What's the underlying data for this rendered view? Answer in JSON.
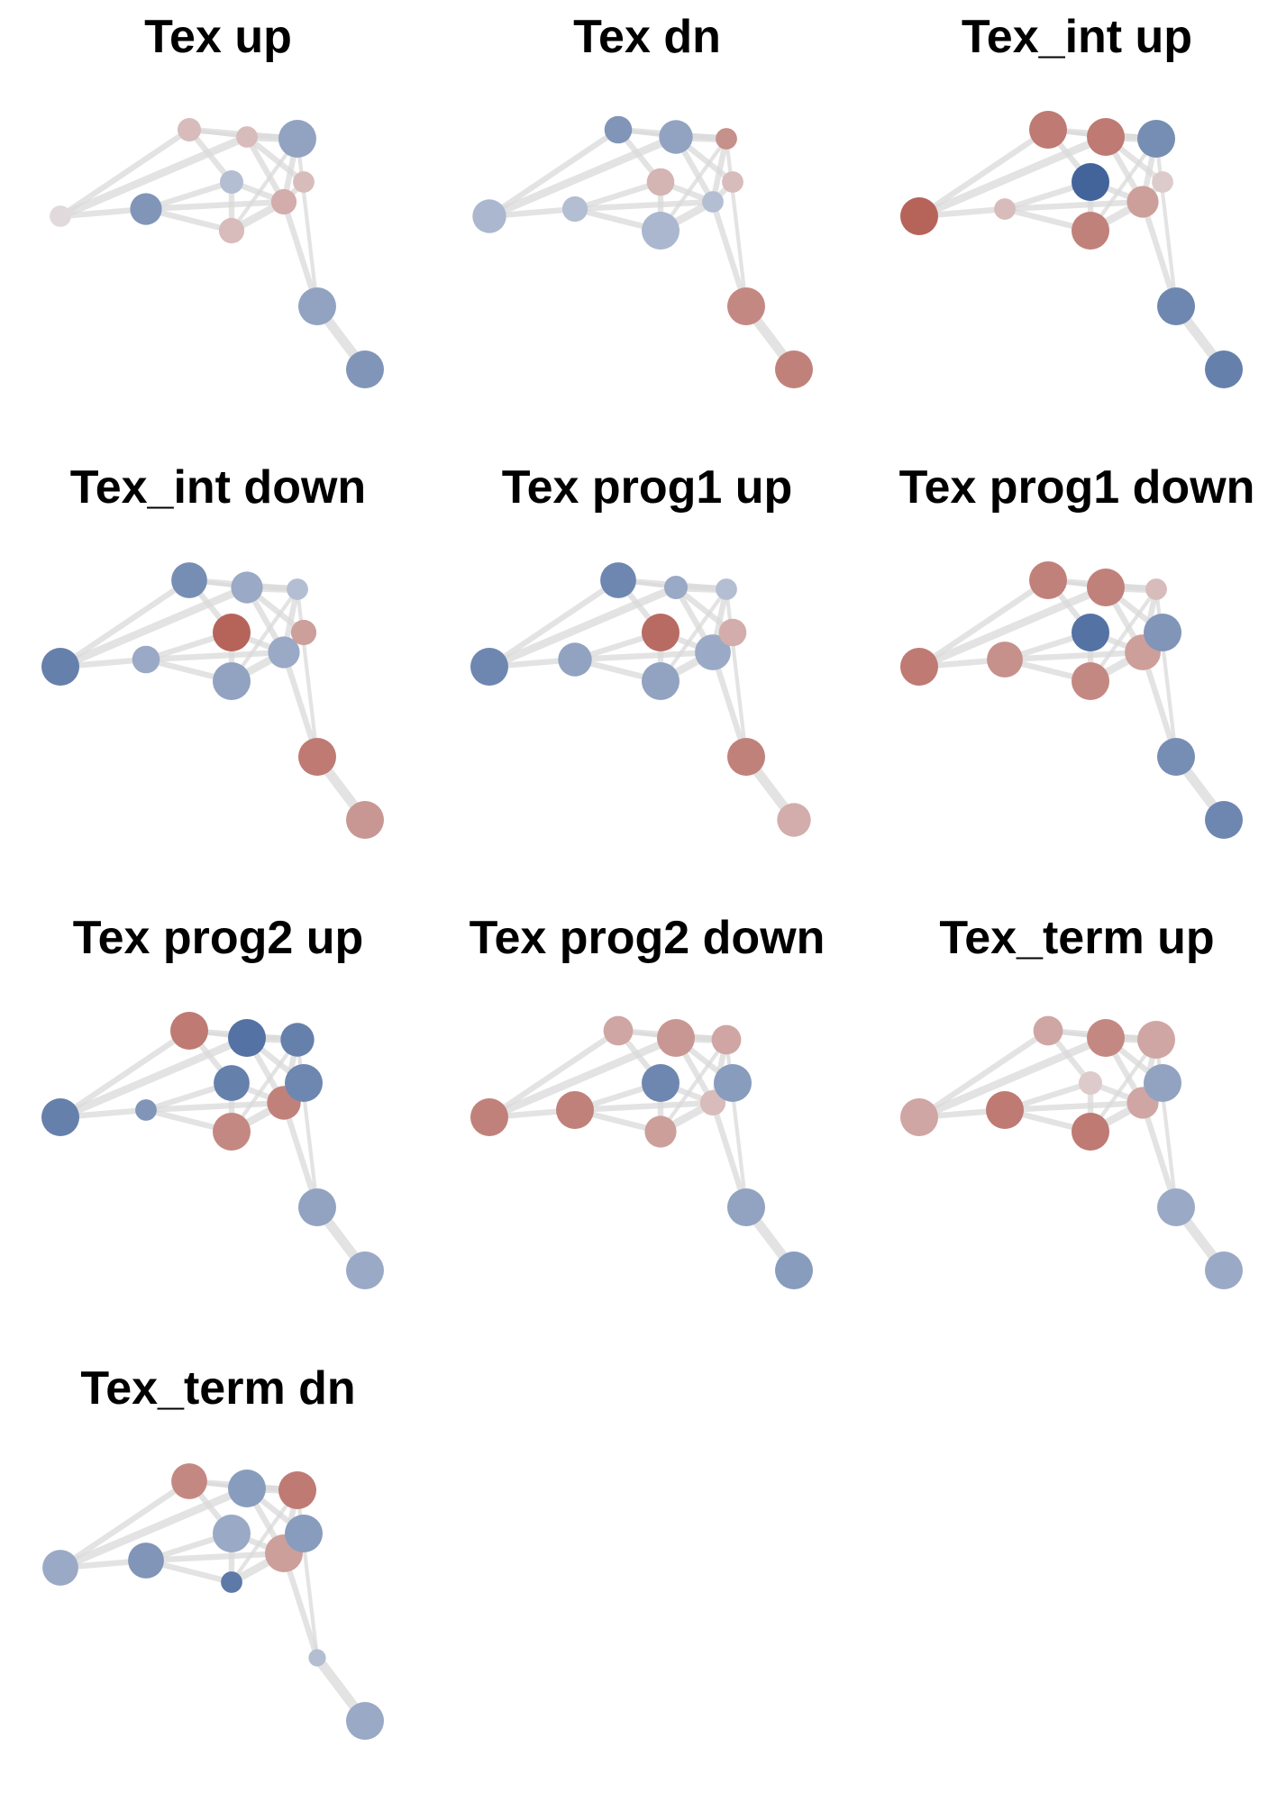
{
  "figure": {
    "colors": {
      "edge": "#d9d9d9",
      "up_strong": "#b0554a",
      "neutral": "#e8e8ec",
      "down_strong": "#3a5d96"
    },
    "edges": [
      {
        "from": 0,
        "to": 1,
        "weight": 2
      },
      {
        "from": 0,
        "to": 6,
        "weight": 3
      },
      {
        "from": 0,
        "to": 5,
        "weight": 2
      },
      {
        "from": 1,
        "to": 2,
        "weight": 2
      },
      {
        "from": 1,
        "to": 4,
        "weight": 2
      },
      {
        "from": 1,
        "to": 3,
        "weight": 2
      },
      {
        "from": 2,
        "to": 3,
        "weight": 3
      },
      {
        "from": 2,
        "to": 8,
        "weight": 1
      },
      {
        "from": 2,
        "to": 4,
        "weight": 2
      },
      {
        "from": 3,
        "to": 4,
        "weight": 2
      },
      {
        "from": 3,
        "to": 7,
        "weight": 2
      },
      {
        "from": 3,
        "to": 6,
        "weight": 2
      },
      {
        "from": 3,
        "to": 8,
        "weight": 2
      },
      {
        "from": 4,
        "to": 5,
        "weight": 2
      },
      {
        "from": 5,
        "to": 6,
        "weight": 1
      },
      {
        "from": 5,
        "to": 8,
        "weight": 2
      },
      {
        "from": 6,
        "to": 8,
        "weight": 3
      },
      {
        "from": 6,
        "to": 7,
        "weight": 2
      },
      {
        "from": 3,
        "to": 9,
        "weight": 2
      },
      {
        "from": 8,
        "to": 9,
        "weight": 1
      },
      {
        "from": 9,
        "to": 10,
        "weight": 4
      }
    ],
    "panels": [
      {
        "title": "Tex up",
        "nodes": [
          {
            "s": 0.3,
            "v": 0.1
          },
          {
            "s": 0.55,
            "v": -0.6
          },
          {
            "s": 0.4,
            "v": 0.3
          },
          {
            "s": 0.4,
            "v": 0.4
          },
          {
            "s": 0.35,
            "v": -0.3
          },
          {
            "s": 0.35,
            "v": 0.3
          },
          {
            "s": 0.3,
            "v": 0.3
          },
          {
            "s": 0.3,
            "v": 0.3
          },
          {
            "s": 0.7,
            "v": -0.5
          },
          {
            "s": 0.7,
            "v": -0.5
          },
          {
            "s": 0.7,
            "v": -0.6
          }
        ]
      },
      {
        "title": "Tex dn",
        "nodes": [
          {
            "s": 0.6,
            "v": -0.35
          },
          {
            "s": 0.4,
            "v": -0.3
          },
          {
            "s": 0.7,
            "v": -0.35
          },
          {
            "s": 0.3,
            "v": -0.3
          },
          {
            "s": 0.45,
            "v": 0.35
          },
          {
            "s": 0.45,
            "v": -0.6
          },
          {
            "s": 0.6,
            "v": -0.5
          },
          {
            "s": 0.3,
            "v": 0.3
          },
          {
            "s": 0.3,
            "v": 0.6
          },
          {
            "s": 0.7,
            "v": 0.65
          },
          {
            "s": 0.7,
            "v": 0.7
          }
        ]
      },
      {
        "title": "Tex_int up",
        "nodes": [
          {
            "s": 0.7,
            "v": 0.9
          },
          {
            "s": 0.3,
            "v": 0.3
          },
          {
            "s": 0.7,
            "v": 0.7
          },
          {
            "s": 0.55,
            "v": 0.5
          },
          {
            "s": 0.7,
            "v": -0.95
          },
          {
            "s": 0.7,
            "v": 0.75
          },
          {
            "s": 0.7,
            "v": 0.75
          },
          {
            "s": 0.3,
            "v": 0.2
          },
          {
            "s": 0.7,
            "v": -0.65
          },
          {
            "s": 0.7,
            "v": -0.7
          },
          {
            "s": 0.7,
            "v": -0.75
          }
        ]
      },
      {
        "title": "Tex_int down",
        "nodes": [
          {
            "s": 0.7,
            "v": -0.75
          },
          {
            "s": 0.45,
            "v": -0.45
          },
          {
            "s": 0.7,
            "v": -0.5
          },
          {
            "s": 0.55,
            "v": -0.45
          },
          {
            "s": 0.7,
            "v": 0.9
          },
          {
            "s": 0.65,
            "v": -0.65
          },
          {
            "s": 0.55,
            "v": -0.45
          },
          {
            "s": 0.4,
            "v": 0.5
          },
          {
            "s": 0.3,
            "v": -0.3
          },
          {
            "s": 0.7,
            "v": 0.75
          },
          {
            "s": 0.7,
            "v": 0.55
          }
        ]
      },
      {
        "title": "Tex prog1 up",
        "nodes": [
          {
            "s": 0.7,
            "v": -0.7
          },
          {
            "s": 0.6,
            "v": -0.5
          },
          {
            "s": 0.7,
            "v": -0.5
          },
          {
            "s": 0.65,
            "v": -0.45
          },
          {
            "s": 0.7,
            "v": 0.85
          },
          {
            "s": 0.65,
            "v": -0.7
          },
          {
            "s": 0.35,
            "v": -0.45
          },
          {
            "s": 0.45,
            "v": 0.4
          },
          {
            "s": 0.3,
            "v": -0.3
          },
          {
            "s": 0.7,
            "v": 0.7
          },
          {
            "s": 0.6,
            "v": 0.4
          }
        ]
      },
      {
        "title": "Tex prog1 down",
        "nodes": [
          {
            "s": 0.7,
            "v": 0.75
          },
          {
            "s": 0.65,
            "v": 0.6
          },
          {
            "s": 0.7,
            "v": 0.65
          },
          {
            "s": 0.65,
            "v": 0.5
          },
          {
            "s": 0.7,
            "v": -0.85
          },
          {
            "s": 0.7,
            "v": 0.7
          },
          {
            "s": 0.7,
            "v": 0.7
          },
          {
            "s": 0.7,
            "v": -0.6
          },
          {
            "s": 0.3,
            "v": 0.3
          },
          {
            "s": 0.7,
            "v": -0.65
          },
          {
            "s": 0.7,
            "v": -0.7
          }
        ]
      },
      {
        "title": "Tex prog2 up",
        "nodes": [
          {
            "s": 0.7,
            "v": -0.75
          },
          {
            "s": 0.3,
            "v": -0.6
          },
          {
            "s": 0.7,
            "v": 0.65
          },
          {
            "s": 0.6,
            "v": 0.7
          },
          {
            "s": 0.65,
            "v": -0.75
          },
          {
            "s": 0.7,
            "v": 0.75
          },
          {
            "s": 0.7,
            "v": -0.85
          },
          {
            "s": 0.7,
            "v": -0.7
          },
          {
            "s": 0.6,
            "v": -0.75
          },
          {
            "s": 0.7,
            "v": -0.5
          },
          {
            "s": 0.7,
            "v": -0.45
          }
        ]
      },
      {
        "title": "Tex prog2 down",
        "nodes": [
          {
            "s": 0.7,
            "v": 0.7
          },
          {
            "s": 0.7,
            "v": 0.7
          },
          {
            "s": 0.55,
            "v": 0.5
          },
          {
            "s": 0.4,
            "v": 0.3
          },
          {
            "s": 0.7,
            "v": -0.7
          },
          {
            "s": 0.5,
            "v": 0.45
          },
          {
            "s": 0.7,
            "v": 0.55
          },
          {
            "s": 0.7,
            "v": -0.55
          },
          {
            "s": 0.5,
            "v": 0.45
          },
          {
            "s": 0.7,
            "v": -0.5
          },
          {
            "s": 0.7,
            "v": -0.55
          }
        ]
      },
      {
        "title": "Tex_term up",
        "nodes": [
          {
            "s": 0.7,
            "v": 0.45
          },
          {
            "s": 0.7,
            "v": 0.75
          },
          {
            "s": 0.7,
            "v": 0.75
          },
          {
            "s": 0.55,
            "v": 0.45
          },
          {
            "s": 0.35,
            "v": 0.2
          },
          {
            "s": 0.5,
            "v": 0.45
          },
          {
            "s": 0.7,
            "v": 0.65
          },
          {
            "s": 0.7,
            "v": -0.5
          },
          {
            "s": 0.7,
            "v": 0.45
          },
          {
            "s": 0.7,
            "v": -0.45
          },
          {
            "s": 0.7,
            "v": -0.45
          }
        ]
      },
      {
        "title": "Tex_term dn",
        "nodes": [
          {
            "s": 0.65,
            "v": -0.45
          },
          {
            "s": 0.65,
            "v": -0.6
          },
          {
            "s": 0.3,
            "v": -0.8
          },
          {
            "s": 0.7,
            "v": 0.5
          },
          {
            "s": 0.7,
            "v": -0.45
          },
          {
            "s": 0.65,
            "v": 0.65
          },
          {
            "s": 0.7,
            "v": -0.55
          },
          {
            "s": 0.7,
            "v": -0.55
          },
          {
            "s": 0.7,
            "v": 0.75
          },
          {
            "s": 0.2,
            "v": -0.3
          },
          {
            "s": 0.7,
            "v": -0.45
          }
        ]
      }
    ]
  }
}
